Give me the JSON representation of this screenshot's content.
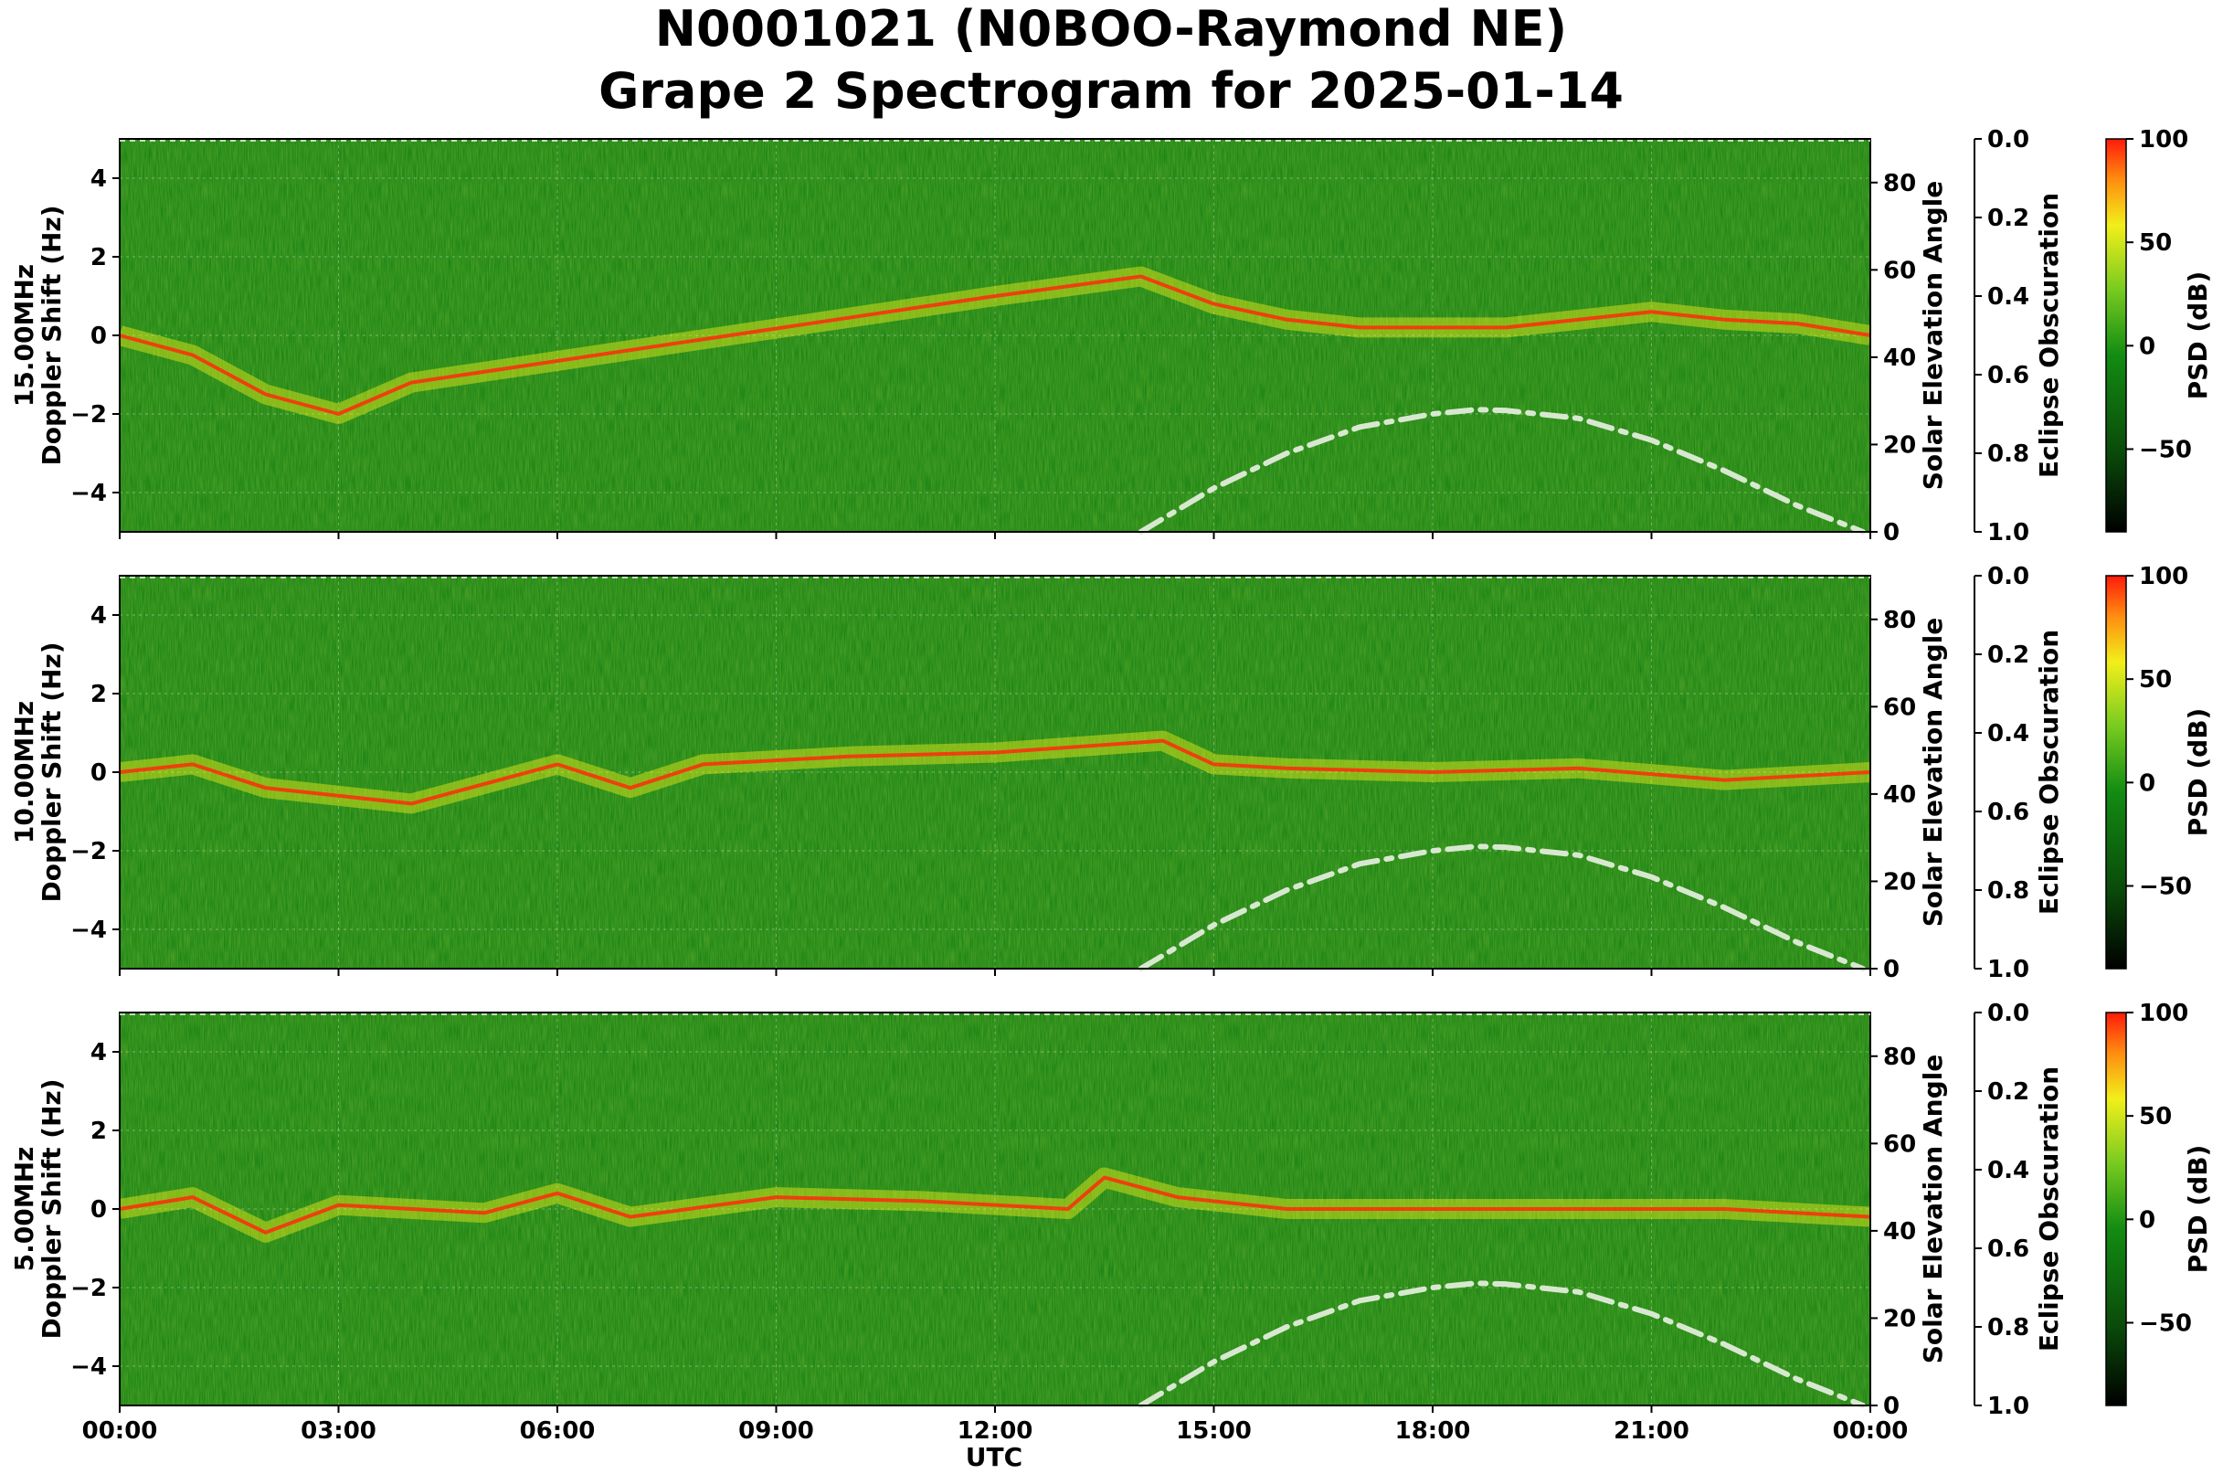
{
  "title_line1": "N0001021 (N0BOO-Raymond NE)",
  "title_line2": "Grape 2 Spectrogram for 2025-01-14",
  "xlabel": "UTC",
  "colors": {
    "background_green": "#0f7d0f",
    "yellow": "#f2ef1a",
    "red": "#ff2a0a",
    "elevation_curve": "#d8e8d0"
  },
  "chart_data": [
    {
      "type": "heatmap",
      "panel": "15.00MHz",
      "ylabel": "15.00MHz\nDoppler Shift (Hz)",
      "ylim": [
        -5,
        5
      ],
      "yticks": [
        "4",
        "2",
        "0",
        "−2",
        "−4"
      ],
      "xticks": [
        "00:00",
        "03:00",
        "06:00",
        "09:00",
        "12:00",
        "15:00",
        "18:00",
        "21:00",
        "00:00"
      ],
      "right_axis_1": {
        "label": "Solar Elevation Angle",
        "ticks": [
          "0",
          "20",
          "40",
          "60",
          "80"
        ],
        "range": [
          0,
          90
        ]
      },
      "right_axis_2": {
        "label": "Eclipse Obscuration",
        "ticks": [
          "0.0",
          "0.2",
          "0.4",
          "0.6",
          "0.8",
          "1.0"
        ],
        "range": [
          0,
          1
        ]
      },
      "colorbar": {
        "label": "PSD (dB)",
        "ticks": [
          "100",
          "50",
          "0",
          "−50"
        ],
        "range": [
          -90,
          100
        ]
      },
      "doppler_trace_hours": [
        0,
        1,
        2,
        3,
        4,
        12,
        14,
        15,
        16,
        17,
        18,
        19,
        20,
        21,
        22,
        23,
        24
      ],
      "doppler_trace_hz": [
        0,
        -0.5,
        -1.5,
        -2.0,
        -1.2,
        1.0,
        1.5,
        0.8,
        0.4,
        0.2,
        0.2,
        0.2,
        0.4,
        0.6,
        0.4,
        0.3,
        0.0
      ],
      "solar_elevation": {
        "hours": [
          14.0,
          15,
          16,
          17,
          18,
          18.6,
          19,
          20,
          21,
          22,
          23,
          23.9
        ],
        "degrees": [
          0,
          10,
          18,
          24,
          27,
          28,
          27.8,
          26,
          21,
          14,
          6,
          0
        ]
      }
    },
    {
      "type": "heatmap",
      "panel": "10.00MHz",
      "ylabel": "10.00MHz\nDoppler Shift (Hz)",
      "ylim": [
        -5,
        5
      ],
      "yticks": [
        "4",
        "2",
        "0",
        "−2",
        "−4"
      ],
      "xticks": [
        "00:00",
        "03:00",
        "06:00",
        "09:00",
        "12:00",
        "15:00",
        "18:00",
        "21:00",
        "00:00"
      ],
      "right_axis_1": {
        "label": "Solar Elevation Angle",
        "ticks": [
          "0",
          "20",
          "40",
          "60",
          "80"
        ],
        "range": [
          0,
          90
        ]
      },
      "right_axis_2": {
        "label": "Eclipse Obscuration",
        "ticks": [
          "0.0",
          "0.2",
          "0.4",
          "0.6",
          "0.8",
          "1.0"
        ],
        "range": [
          0,
          1
        ]
      },
      "colorbar": {
        "label": "PSD (dB)",
        "ticks": [
          "100",
          "50",
          "0",
          "−50"
        ],
        "range": [
          -90,
          100
        ]
      },
      "doppler_trace_hours": [
        0,
        1,
        2,
        4,
        6,
        7,
        8,
        10,
        12,
        14.3,
        15,
        16,
        18,
        20,
        22,
        24
      ],
      "doppler_trace_hz": [
        0,
        0.2,
        -0.4,
        -0.8,
        0.2,
        -0.4,
        0.2,
        0.4,
        0.5,
        0.8,
        0.2,
        0.1,
        0.0,
        0.1,
        -0.2,
        0.0
      ],
      "solar_elevation": {
        "hours": [
          14.0,
          15,
          16,
          17,
          18,
          18.6,
          19,
          20,
          21,
          22,
          23,
          23.9
        ],
        "degrees": [
          0,
          10,
          18,
          24,
          27,
          28,
          27.8,
          26,
          21,
          14,
          6,
          0
        ]
      }
    },
    {
      "type": "heatmap",
      "panel": "5.00MHz",
      "ylabel": "5.00MHz\nDoppler Shift (Hz)",
      "ylim": [
        -5,
        5
      ],
      "yticks": [
        "4",
        "2",
        "0",
        "−2",
        "−4"
      ],
      "xticks": [
        "00:00",
        "03:00",
        "06:00",
        "09:00",
        "12:00",
        "15:00",
        "18:00",
        "21:00",
        "00:00"
      ],
      "right_axis_1": {
        "label": "Solar Elevation Angle",
        "ticks": [
          "0",
          "20",
          "40",
          "60",
          "80"
        ],
        "range": [
          0,
          90
        ]
      },
      "right_axis_2": {
        "label": "Eclipse Obscuration",
        "ticks": [
          "0.0",
          "0.2",
          "0.4",
          "0.6",
          "0.8",
          "1.0"
        ],
        "range": [
          0,
          1
        ]
      },
      "colorbar": {
        "label": "PSD (dB)",
        "ticks": [
          "100",
          "50",
          "0",
          "−50"
        ],
        "range": [
          -90,
          100
        ]
      },
      "doppler_trace_hours": [
        0,
        1,
        2,
        3,
        5,
        6,
        7,
        9,
        11,
        13,
        13.5,
        14.5,
        16,
        18,
        20,
        22,
        24
      ],
      "doppler_trace_hz": [
        0,
        0.3,
        -0.6,
        0.1,
        -0.1,
        0.4,
        -0.2,
        0.3,
        0.2,
        0.0,
        0.8,
        0.3,
        0.0,
        0.0,
        0.0,
        0.0,
        -0.2
      ],
      "solar_elevation": {
        "hours": [
          14.0,
          15,
          16,
          17,
          18,
          18.6,
          19,
          20,
          21,
          22,
          23,
          23.9
        ],
        "degrees": [
          0,
          10,
          18,
          24,
          27,
          28,
          27.8,
          26,
          21,
          14,
          6,
          0
        ]
      }
    }
  ]
}
